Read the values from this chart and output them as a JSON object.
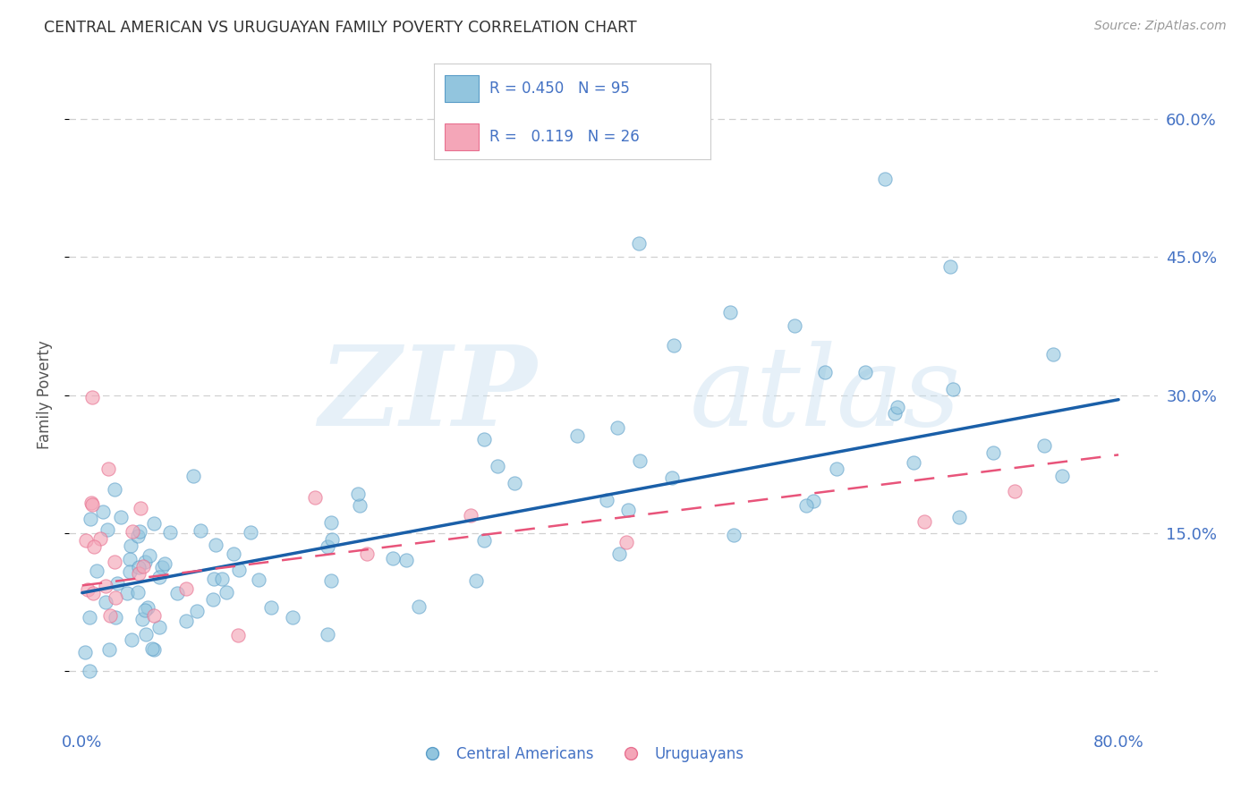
{
  "title": "CENTRAL AMERICAN VS URUGUAYAN FAMILY POVERTY CORRELATION CHART",
  "source": "Source: ZipAtlas.com",
  "ylabel": "Family Poverty",
  "ytick_vals": [
    0.0,
    0.15,
    0.3,
    0.45,
    0.6
  ],
  "ytick_labels": [
    "",
    "15.0%",
    "30.0%",
    "45.0%",
    "60.0%"
  ],
  "xtick_vals": [
    0.0,
    0.2,
    0.4,
    0.6,
    0.8
  ],
  "xtick_labels": [
    "0.0%",
    "",
    "",
    "",
    "80.0%"
  ],
  "xlim": [
    -0.01,
    0.83
  ],
  "ylim": [
    -0.06,
    0.66
  ],
  "watermark_zip": "ZIP",
  "watermark_atlas": "atlas",
  "blue_color": "#92c5de",
  "pink_color": "#f4a6b8",
  "blue_scatter_edge": "#5a9dc8",
  "pink_scatter_edge": "#e87090",
  "blue_line_color": "#1a5fa8",
  "pink_line_color": "#e8547a",
  "tick_color": "#4472c4",
  "title_color": "#333333",
  "source_color": "#999999",
  "ylabel_color": "#555555",
  "grid_color": "#d0d0d0",
  "legend_text_color": "#4472c4",
  "legend_border_color": "#cccccc",
  "ca_line_x0": 0.0,
  "ca_line_x1": 0.8,
  "ca_line_y0": 0.085,
  "ca_line_y1": 0.295,
  "uy_line_x0": 0.0,
  "uy_line_x1": 0.8,
  "uy_line_y0": 0.093,
  "uy_line_y1": 0.235
}
